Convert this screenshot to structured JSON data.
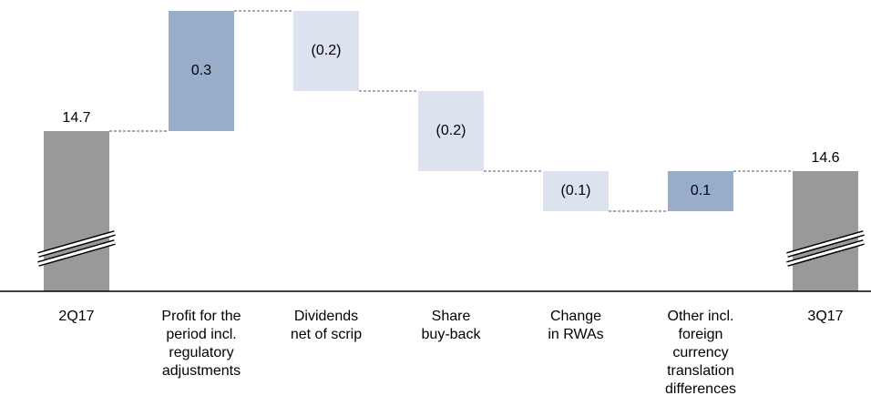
{
  "chart_data": {
    "type": "waterfall",
    "categories": [
      "2Q17",
      "Profit for the\nperiod incl.\nregulatory\nadjustments",
      "Dividends\nnet of scrip",
      "Share\nbuy-back",
      "Change\nin RWAs",
      "Other incl.\nforeign\ncurrency\ntranslation\ndifferences",
      "3Q17"
    ],
    "values": [
      14.7,
      0.3,
      -0.2,
      -0.2,
      -0.1,
      0.1,
      14.6
    ],
    "value_labels": [
      "14.7",
      "0.3",
      "(0.2)",
      "(0.2)",
      "(0.1)",
      "0.1",
      "14.6"
    ],
    "measure": [
      "absolute",
      "relative",
      "relative",
      "relative",
      "relative",
      "relative",
      "total"
    ],
    "colors": {
      "total": "#999999",
      "increase": "#98adca",
      "decrease": "#dde3ee"
    },
    "ylim": [
      14.3,
      15.0
    ],
    "broken_axis": true
  }
}
